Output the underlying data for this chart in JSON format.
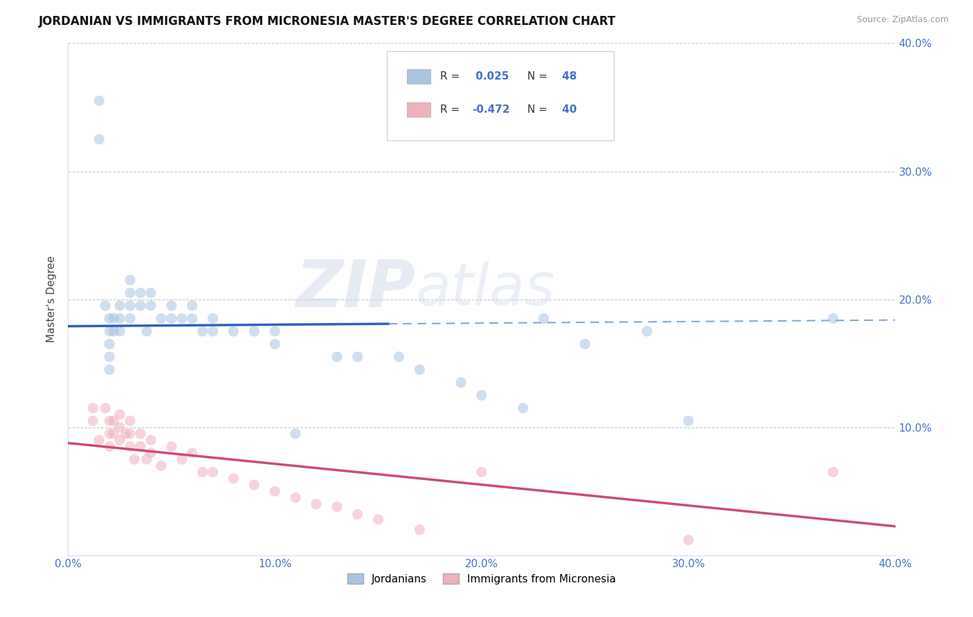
{
  "title": "JORDANIAN VS IMMIGRANTS FROM MICRONESIA MASTER'S DEGREE CORRELATION CHART",
  "source_text": "Source: ZipAtlas.com",
  "ylabel": "Master's Degree",
  "xlabel": "",
  "xlim": [
    0.0,
    0.4
  ],
  "ylim": [
    0.0,
    0.4
  ],
  "xtick_values": [
    0.0,
    0.1,
    0.2,
    0.3,
    0.4
  ],
  "ytick_values": [
    0.0,
    0.1,
    0.2,
    0.3,
    0.4
  ],
  "blue_R": 0.025,
  "blue_N": 48,
  "pink_R": -0.472,
  "pink_N": 40,
  "blue_color": "#a8c4e0",
  "blue_line_color": "#3060c0",
  "blue_line_dash_color": "#7aa8d8",
  "pink_color": "#f0b0bc",
  "pink_line_color": "#d04878",
  "legend_label_blue": "Jordanians",
  "legend_label_pink": "Immigrants from Micronesia",
  "watermark_zip": "ZIP",
  "watermark_atlas": "atlas",
  "grid_color": "#c8c8c8",
  "background_color": "#ffffff",
  "title_fontsize": 12,
  "tick_fontsize": 11,
  "marker_size": 120,
  "marker_alpha": 0.55,
  "blue_scatter_x": [
    0.015,
    0.015,
    0.018,
    0.02,
    0.02,
    0.02,
    0.02,
    0.02,
    0.022,
    0.022,
    0.025,
    0.025,
    0.025,
    0.03,
    0.03,
    0.03,
    0.03,
    0.035,
    0.035,
    0.038,
    0.04,
    0.04,
    0.045,
    0.05,
    0.05,
    0.055,
    0.06,
    0.06,
    0.065,
    0.07,
    0.07,
    0.08,
    0.09,
    0.1,
    0.1,
    0.11,
    0.13,
    0.14,
    0.16,
    0.17,
    0.19,
    0.2,
    0.22,
    0.23,
    0.25,
    0.28,
    0.3,
    0.37
  ],
  "blue_scatter_y": [
    0.355,
    0.325,
    0.195,
    0.185,
    0.175,
    0.165,
    0.155,
    0.145,
    0.185,
    0.175,
    0.195,
    0.185,
    0.175,
    0.215,
    0.205,
    0.195,
    0.185,
    0.205,
    0.195,
    0.175,
    0.205,
    0.195,
    0.185,
    0.195,
    0.185,
    0.185,
    0.195,
    0.185,
    0.175,
    0.175,
    0.185,
    0.175,
    0.175,
    0.165,
    0.175,
    0.095,
    0.155,
    0.155,
    0.155,
    0.145,
    0.135,
    0.125,
    0.115,
    0.185,
    0.165,
    0.175,
    0.105,
    0.185
  ],
  "pink_scatter_x": [
    0.012,
    0.012,
    0.015,
    0.018,
    0.02,
    0.02,
    0.02,
    0.022,
    0.022,
    0.025,
    0.025,
    0.025,
    0.028,
    0.03,
    0.03,
    0.03,
    0.032,
    0.035,
    0.035,
    0.038,
    0.04,
    0.04,
    0.045,
    0.05,
    0.055,
    0.06,
    0.065,
    0.07,
    0.08,
    0.09,
    0.1,
    0.11,
    0.12,
    0.13,
    0.14,
    0.15,
    0.17,
    0.2,
    0.3,
    0.37
  ],
  "pink_scatter_y": [
    0.115,
    0.105,
    0.09,
    0.115,
    0.105,
    0.095,
    0.085,
    0.105,
    0.095,
    0.11,
    0.1,
    0.09,
    0.095,
    0.105,
    0.095,
    0.085,
    0.075,
    0.095,
    0.085,
    0.075,
    0.09,
    0.08,
    0.07,
    0.085,
    0.075,
    0.08,
    0.065,
    0.065,
    0.06,
    0.055,
    0.05,
    0.045,
    0.04,
    0.038,
    0.032,
    0.028,
    0.02,
    0.065,
    0.012,
    0.065
  ]
}
